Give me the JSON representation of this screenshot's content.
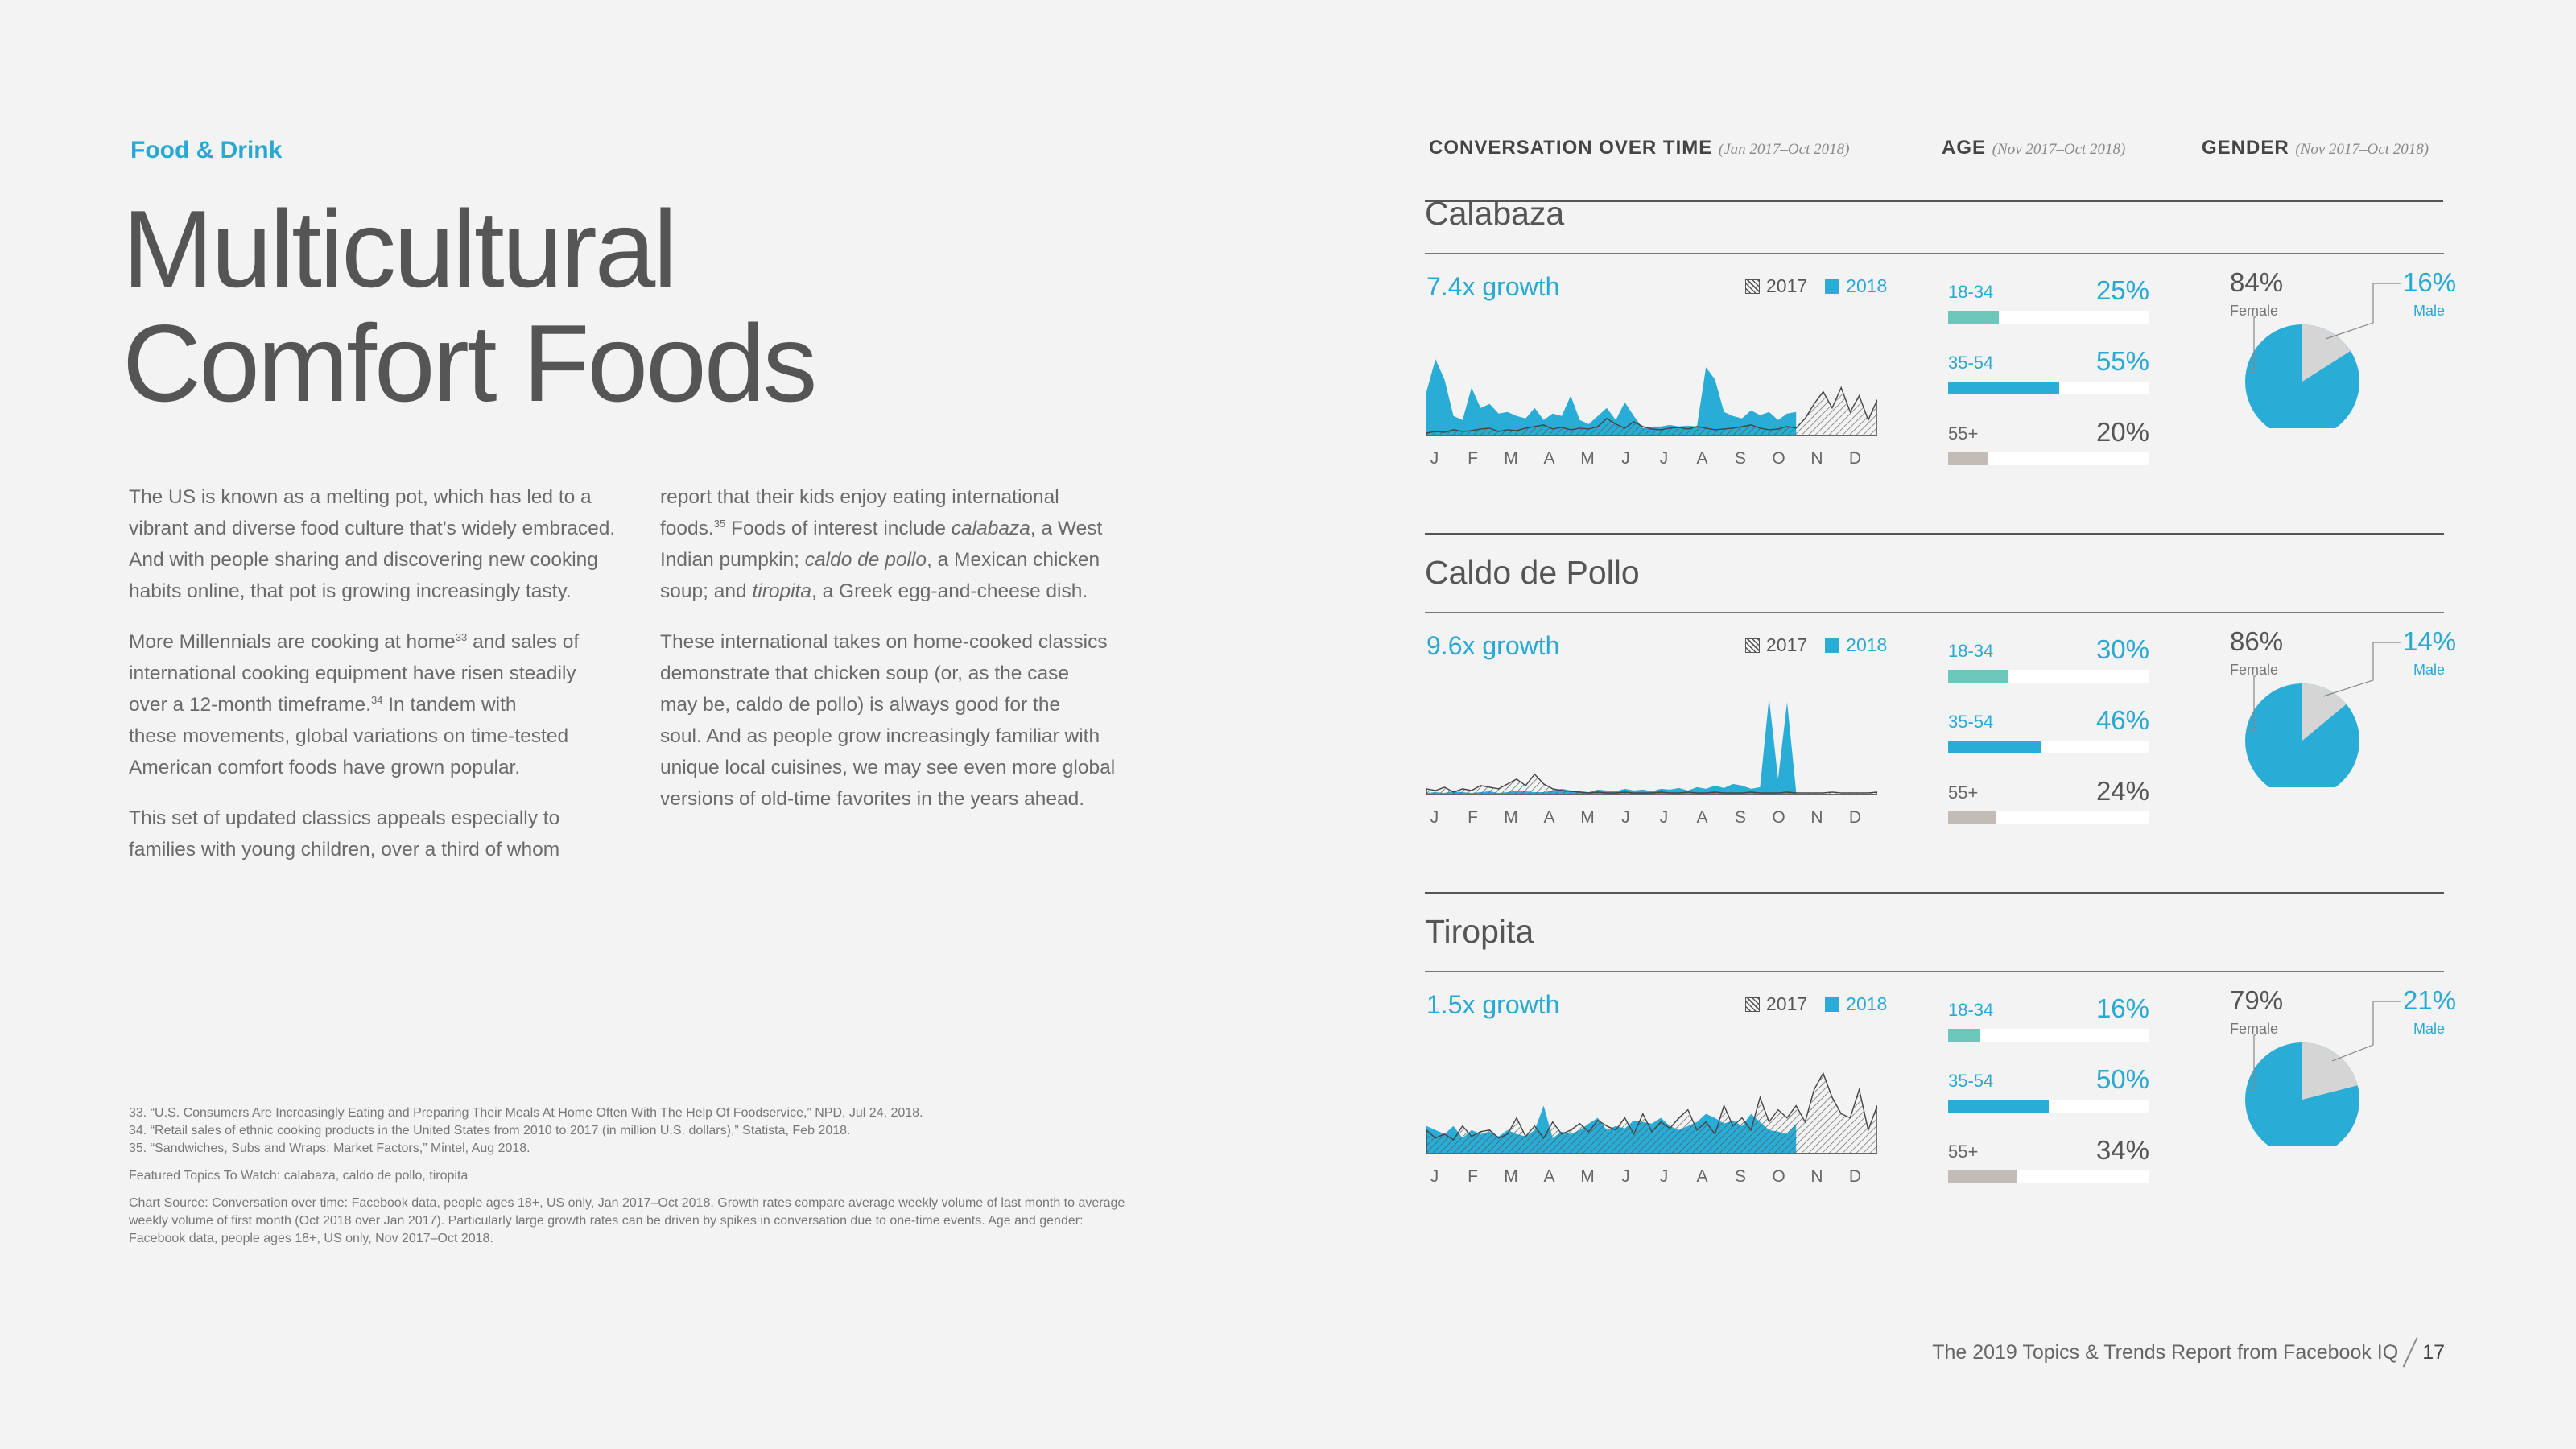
{
  "kicker": "Food & Drink",
  "title": [
    "Multicultural",
    "Comfort Foods"
  ],
  "body_col1": [
    [
      "The US is known as a melting pot, which has led to a",
      "vibrant and diverse food culture that’s widely embraced.",
      "And with people sharing and discovering new cooking",
      "habits online, that pot is growing increasingly tasty."
    ],
    [
      "More Millennials are cooking at home{33} and sales of",
      "international cooking equipment have risen steadily",
      "over a 12-month timeframe.{34} In tandem with",
      "these movements, global variations on time-tested",
      "American comfort foods have grown popular."
    ],
    [
      "This set of updated classics appeals especially to",
      "families with young children, over a third of whom"
    ]
  ],
  "body_col2": [
    [
      "report that their kids enjoy eating international",
      "foods.{35} Foods of interest include calabaza, a West",
      "Indian pumpkin; caldo de pollo, a Mexican chicken",
      "soup; and tiropita, a Greek egg-and-cheese dish."
    ],
    [
      "These international takes on home-cooked classics",
      "demonstrate that chicken soup (or, as the case",
      "may be, caldo de pollo) is always good for the",
      "soul. And as people grow increasingly familiar with",
      "unique local cuisines, we may see even more global",
      "versions of old-time favorites in the years ahead."
    ]
  ],
  "notes": [
    [
      "33. “U.S. Consumers Are Increasingly Eating and Preparing Their Meals At Home Often With The Help Of Foodservice,” NPD, Jul 24, 2018.",
      "34. “Retail sales of ethnic cooking products in the United States from 2010 to 2017 (in million U.S. dollars),” Statista, Feb 2018.",
      "35. “Sandwiches, Subs and Wraps: Market Factors,” Mintel, Aug 2018."
    ],
    [
      "Featured Topics To Watch: calabaza, caldo de pollo, tiropita"
    ],
    [
      "Chart Source: Conversation over time: Facebook data, people ages 18+, US only, Jan 2017–Oct 2018. Growth rates compare average weekly volume of last month to average",
      "weekly volume of first month (Oct 2018 over Jan 2017). Particularly large growth rates can be driven by spikes in conversation due to one-time events. Age and gender:",
      "Facebook data, people ages 18+, US only, Nov 2017–Oct 2018."
    ]
  ],
  "headers": {
    "conversation": "CONVERSATION OVER TIME",
    "conversation_range": "(Jan 2017–Oct 2018)",
    "age": "AGE",
    "age_range": "(Nov 2017–Oct 2018)",
    "gender": "GENDER",
    "gender_range": "(Nov 2017–Oct 2018)"
  },
  "legend": {
    "y2017": "2017",
    "y2018": "2018"
  },
  "months": [
    "J",
    "F",
    "M",
    "A",
    "M",
    "J",
    "J",
    "A",
    "S",
    "O",
    "N",
    "D"
  ],
  "colors": {
    "accent": "#29acd6",
    "teal": "#6cc7bb",
    "grey": "#c3bcb6",
    "pie_grey": "#d5d5d5",
    "title_blue": "#29a8d4"
  },
  "footer": {
    "text": "The 2019 Topics & Trends Report from Facebook IQ",
    "page": "17"
  },
  "chart_data": [
    {
      "type": "area",
      "title": "Calabaza",
      "growth": "7.4x growth",
      "series": [
        {
          "name": "2017",
          "values": [
            4,
            6,
            5,
            8,
            6,
            7,
            9,
            10,
            6,
            8,
            7,
            10,
            12,
            14,
            9,
            11,
            8,
            10,
            9,
            12,
            22,
            15,
            10,
            18,
            12,
            9,
            8,
            10,
            11,
            9,
            12,
            10,
            8,
            9,
            10,
            12,
            14,
            10,
            8,
            9,
            12,
            10,
            22,
            40,
            55,
            35,
            60,
            30,
            50,
            20,
            45
          ]
        },
        {
          "name": "2018",
          "values": [
            55,
            95,
            70,
            25,
            20,
            60,
            35,
            40,
            28,
            30,
            25,
            22,
            35,
            20,
            28,
            25,
            50,
            20,
            15,
            25,
            35,
            20,
            42,
            25,
            10,
            12,
            12,
            14,
            12,
            13,
            12,
            85,
            70,
            30,
            25,
            22,
            32,
            26,
            30,
            20,
            28,
            30
          ]
        }
      ],
      "age": [
        {
          "label": "18-34",
          "pct": "25%",
          "value": 25
        },
        {
          "label": "35-54",
          "pct": "55%",
          "value": 55
        },
        {
          "label": "55+",
          "pct": "20%",
          "value": 20
        }
      ],
      "gender": {
        "female_pct": "84%",
        "female": 84,
        "female_label": "Female",
        "male_pct": "16%",
        "male": 16,
        "male_label": "Male"
      }
    },
    {
      "type": "area",
      "title": "Caldo de Pollo",
      "growth": "9.6x growth",
      "series": [
        {
          "name": "2017",
          "values": [
            8,
            6,
            10,
            4,
            8,
            6,
            12,
            10,
            8,
            14,
            20,
            12,
            26,
            14,
            8,
            6,
            5,
            4,
            3,
            4,
            3,
            3,
            4,
            3,
            3,
            3,
            4,
            3,
            3,
            4,
            3,
            3,
            4,
            3,
            3,
            3,
            4,
            3,
            3,
            3,
            4,
            3,
            3,
            3,
            3,
            4,
            3,
            3,
            3,
            3,
            4
          ]
        },
        {
          "name": "2018",
          "values": [
            3,
            4,
            3,
            5,
            4,
            3,
            4,
            5,
            3,
            4,
            6,
            5,
            4,
            4,
            6,
            8,
            6,
            5,
            4,
            7,
            6,
            5,
            8,
            6,
            7,
            5,
            8,
            7,
            9,
            6,
            10,
            8,
            12,
            9,
            14,
            12,
            8,
            10,
            120,
            20,
            115,
            5
          ]
        }
      ],
      "age": [
        {
          "label": "18-34",
          "pct": "30%",
          "value": 30
        },
        {
          "label": "35-54",
          "pct": "46%",
          "value": 46
        },
        {
          "label": "55+",
          "pct": "24%",
          "value": 24
        }
      ],
      "gender": {
        "female_pct": "86%",
        "female": 86,
        "female_label": "Female",
        "male_pct": "14%",
        "male": 14,
        "male_label": "Male"
      }
    },
    {
      "type": "area",
      "title": "Tiropita",
      "growth": "1.5x growth",
      "series": [
        {
          "name": "2017",
          "values": [
            30,
            20,
            25,
            18,
            35,
            22,
            28,
            30,
            20,
            25,
            45,
            22,
            35,
            20,
            40,
            25,
            30,
            38,
            28,
            42,
            35,
            30,
            45,
            25,
            50,
            28,
            40,
            32,
            45,
            55,
            30,
            40,
            25,
            60,
            35,
            45,
            30,
            70,
            40,
            55,
            45,
            60,
            40,
            80,
            100,
            70,
            50,
            45,
            80,
            30,
            60
          ]
        },
        {
          "name": "2018",
          "values": [
            35,
            30,
            25,
            35,
            20,
            30,
            25,
            28,
            22,
            30,
            25,
            22,
            30,
            60,
            20,
            28,
            25,
            30,
            38,
            45,
            30,
            35,
            32,
            42,
            40,
            38,
            45,
            35,
            30,
            35,
            40,
            50,
            45,
            38,
            42,
            35,
            50,
            40,
            30,
            28,
            25,
            38
          ]
        }
      ],
      "age": [
        {
          "label": "18-34",
          "pct": "16%",
          "value": 16
        },
        {
          "label": "35-54",
          "pct": "50%",
          "value": 50
        },
        {
          "label": "55+",
          "pct": "34%",
          "value": 34
        }
      ],
      "gender": {
        "female_pct": "79%",
        "female": 79,
        "female_label": "Female",
        "male_pct": "21%",
        "male": 21,
        "male_label": "Male"
      }
    }
  ]
}
